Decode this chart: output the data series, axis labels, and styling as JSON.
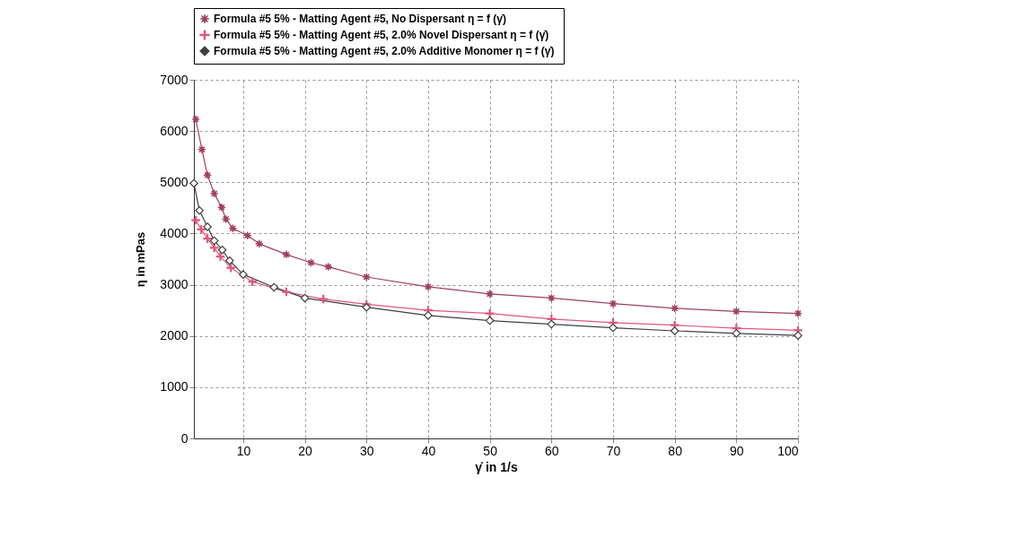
{
  "chart_data": {
    "type": "line",
    "xlabel": "γ̇ in 1/s",
    "ylabel": "η in mPas",
    "xlim": [
      2,
      100
    ],
    "xticks": [
      10,
      20,
      30,
      40,
      50,
      60,
      70,
      80,
      90,
      100
    ],
    "ylim": [
      0,
      7000
    ],
    "yticks": [
      0,
      1000,
      2000,
      3000,
      4000,
      5000,
      6000,
      7000
    ],
    "grid": true,
    "legend": "top",
    "line_style": "solid",
    "series": [
      {
        "name": "Formula #5 5% - Matting Agent #5, No Dispersant  η = f (γ̇)",
        "color": "#a0405f",
        "marker": "star",
        "x": [
          2.3,
          3.3,
          4.2,
          5.3,
          6.5,
          7.2,
          8.3,
          10.7,
          12.6,
          17,
          21,
          23.8,
          30,
          40,
          50,
          60,
          70,
          80,
          90,
          100
        ],
        "values": [
          6230,
          5640,
          5140,
          4780,
          4510,
          4280,
          4100,
          3960,
          3800,
          3590,
          3430,
          3350,
          3150,
          2960,
          2820,
          2740,
          2630,
          2540,
          2480,
          2440
        ]
      },
      {
        "name": "Formula #5 5% - Matting Agent #5, 2.0% Novel Dispersant  η = f (γ̇)",
        "color": "#e0587a",
        "marker": "cross",
        "x": [
          2.3,
          3.2,
          4.2,
          5.3,
          6.3,
          8,
          11.5,
          17,
          23,
          30,
          40,
          50,
          60,
          70,
          80,
          90,
          100
        ],
        "values": [
          4260,
          4080,
          3900,
          3720,
          3550,
          3330,
          3060,
          2860,
          2720,
          2620,
          2500,
          2440,
          2330,
          2260,
          2210,
          2150,
          2110
        ]
      },
      {
        "name": "Formula #5 5% - Matting Agent #5, 2.0% Additive Monomer  η = f (γ̇)",
        "color": "#404040",
        "marker": "diamond",
        "x": [
          2,
          2.9,
          4.2,
          5.3,
          6.6,
          7.8,
          10,
          15,
          20,
          30,
          40,
          50,
          60,
          70,
          80,
          90,
          100
        ],
        "values": [
          4980,
          4450,
          4130,
          3860,
          3680,
          3470,
          3200,
          2950,
          2740,
          2560,
          2400,
          2300,
          2230,
          2160,
          2100,
          2050,
          2010
        ]
      }
    ]
  }
}
